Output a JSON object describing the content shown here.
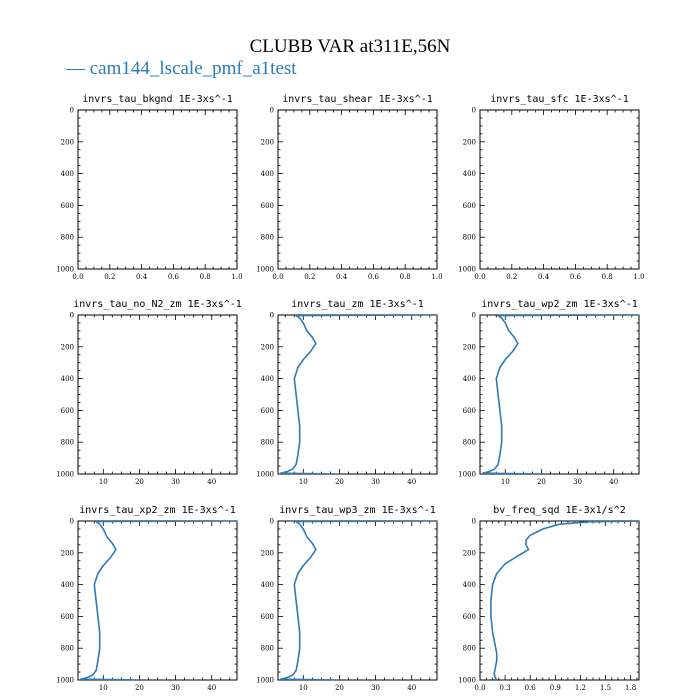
{
  "title": "CLUBB VAR at311E,56N",
  "legend": {
    "label": "cam144_lscale_pmf_a1test",
    "color": "#2b7bb9"
  },
  "chart_data": [
    {
      "type": "line",
      "title": "invrs_tau_bkgnd  1E-3xs^-1",
      "xlim": [
        0,
        1
      ],
      "ylim": [
        1000,
        0
      ],
      "xticks": [
        "0.0",
        "0.2",
        "0.4",
        "0.6",
        "0.8",
        "1.0"
      ],
      "xtick_values": [
        0,
        0.2,
        0.4,
        0.6,
        0.8,
        1.0
      ],
      "yticks": [
        "0",
        "200",
        "400",
        "600",
        "800",
        "1000"
      ],
      "series": []
    },
    {
      "type": "line",
      "title": "invrs_tau_shear  1E-3xs^-1",
      "xlim": [
        0,
        1
      ],
      "ylim": [
        1000,
        0
      ],
      "xticks": [
        "0.0",
        "0.2",
        "0.4",
        "0.6",
        "0.8",
        "1.0"
      ],
      "xtick_values": [
        0,
        0.2,
        0.4,
        0.6,
        0.8,
        1.0
      ],
      "yticks": [
        "0",
        "200",
        "400",
        "600",
        "800",
        "1000"
      ],
      "series": []
    },
    {
      "type": "line",
      "title": "invrs_tau_sfc  1E-3xs^-1",
      "xlim": [
        0,
        1
      ],
      "ylim": [
        1000,
        0
      ],
      "xticks": [
        "0.0",
        "0.2",
        "0.4",
        "0.6",
        "0.8",
        "1.0"
      ],
      "xtick_values": [
        0,
        0.2,
        0.4,
        0.6,
        0.8,
        1.0
      ],
      "yticks": [
        "0",
        "200",
        "400",
        "600",
        "800",
        "1000"
      ],
      "series": []
    },
    {
      "type": "line",
      "title": "invrs_tau_no_N2_zm  1E-3xs^-1",
      "xlim": [
        3,
        47
      ],
      "ylim": [
        1000,
        0
      ],
      "xticks": [
        "10",
        "20",
        "30",
        "40"
      ],
      "xtick_values": [
        10,
        20,
        30,
        40
      ],
      "yticks": [
        "0",
        "200",
        "400",
        "600",
        "800",
        "1000"
      ],
      "series": []
    },
    {
      "type": "line",
      "title": "invrs_tau_zm  1E-3xs^-1",
      "xlim": [
        3,
        47
      ],
      "ylim": [
        1000,
        0
      ],
      "xticks": [
        "10",
        "20",
        "30",
        "40"
      ],
      "xtick_values": [
        10,
        20,
        30,
        40
      ],
      "yticks": [
        "0",
        "200",
        "400",
        "600",
        "800",
        "1000"
      ],
      "series": [
        {
          "x": [
            47,
            20,
            8,
            9,
            10,
            11,
            12.5,
            13.5,
            12,
            10,
            8.5,
            7.5,
            8,
            8.5,
            9,
            9,
            8.5,
            8,
            7,
            5.5,
            3.8,
            20
          ],
          "y": [
            0,
            2,
            4,
            20,
            50,
            100,
            140,
            180,
            230,
            280,
            330,
            400,
            500,
            600,
            700,
            800,
            880,
            940,
            970,
            985,
            995,
            1000
          ]
        }
      ]
    },
    {
      "type": "line",
      "title": "invrs_tau_wp2_zm  1E-3xs^-1",
      "xlim": [
        3,
        47
      ],
      "ylim": [
        1000,
        0
      ],
      "xticks": [
        "10",
        "20",
        "30",
        "40"
      ],
      "xtick_values": [
        10,
        20,
        30,
        40
      ],
      "yticks": [
        "0",
        "200",
        "400",
        "600",
        "800",
        "1000"
      ],
      "series": [
        {
          "x": [
            47,
            20,
            8,
            9,
            10,
            11,
            12.5,
            13.5,
            12,
            10,
            8.5,
            7.5,
            8,
            8.5,
            9,
            9,
            8.5,
            8,
            7,
            5.5,
            3.8,
            20
          ],
          "y": [
            0,
            2,
            4,
            20,
            50,
            100,
            140,
            180,
            230,
            280,
            330,
            400,
            500,
            600,
            700,
            800,
            880,
            940,
            970,
            985,
            995,
            1000
          ]
        }
      ]
    },
    {
      "type": "line",
      "title": "invrs_tau_xp2_zm  1E-3xs^-1",
      "xlim": [
        3,
        47
      ],
      "ylim": [
        1000,
        0
      ],
      "xticks": [
        "10",
        "20",
        "30",
        "40"
      ],
      "xtick_values": [
        10,
        20,
        30,
        40
      ],
      "yticks": [
        "0",
        "200",
        "400",
        "600",
        "800",
        "1000"
      ],
      "series": [
        {
          "x": [
            47,
            20,
            8,
            9,
            10,
            11,
            12.5,
            13.5,
            12,
            10,
            8.5,
            7.5,
            8,
            8.5,
            9,
            9,
            8.5,
            8,
            7,
            5.5,
            3.8,
            20
          ],
          "y": [
            0,
            2,
            4,
            20,
            50,
            100,
            140,
            180,
            230,
            280,
            330,
            400,
            500,
            600,
            700,
            800,
            880,
            940,
            970,
            985,
            995,
            1000
          ]
        }
      ]
    },
    {
      "type": "line",
      "title": "invrs_tau_wp3_zm  1E-3xs^-1",
      "xlim": [
        3,
        47
      ],
      "ylim": [
        1000,
        0
      ],
      "xticks": [
        "10",
        "20",
        "30",
        "40"
      ],
      "xtick_values": [
        10,
        20,
        30,
        40
      ],
      "yticks": [
        "0",
        "200",
        "400",
        "600",
        "800",
        "1000"
      ],
      "series": [
        {
          "x": [
            47,
            20,
            8,
            9,
            10,
            11,
            12.5,
            13.5,
            12,
            10,
            8.5,
            7.5,
            8,
            8.5,
            9,
            9,
            8.5,
            8,
            7,
            5.5,
            3.8,
            20
          ],
          "y": [
            0,
            2,
            4,
            20,
            50,
            100,
            140,
            180,
            230,
            280,
            330,
            400,
            500,
            600,
            700,
            800,
            880,
            940,
            970,
            985,
            995,
            1000
          ]
        }
      ]
    },
    {
      "type": "line",
      "title": "bv_freq_sqd  1E-3x1/s^2",
      "xlim": [
        0,
        1.9
      ],
      "ylim": [
        1000,
        0
      ],
      "xticks": [
        "0.0",
        "0.3",
        "0.6",
        "0.9",
        "1.2",
        "1.5",
        "1.8"
      ],
      "xtick_values": [
        0,
        0.3,
        0.6,
        0.9,
        1.2,
        1.5,
        1.8
      ],
      "yticks": [
        "0",
        "200",
        "400",
        "600",
        "800",
        "1000"
      ],
      "series": [
        {
          "x": [
            1.9,
            1.3,
            0.95,
            0.75,
            0.6,
            0.55,
            0.55,
            0.58,
            0.45,
            0.3,
            0.2,
            0.15,
            0.13,
            0.13,
            0.15,
            0.18,
            0.2,
            0.2,
            0.18,
            0.17,
            0.18,
            0.2
          ],
          "y": [
            0,
            5,
            20,
            50,
            90,
            120,
            150,
            180,
            220,
            270,
            330,
            400,
            500,
            600,
            700,
            780,
            830,
            880,
            930,
            960,
            985,
            1000
          ]
        }
      ]
    }
  ]
}
